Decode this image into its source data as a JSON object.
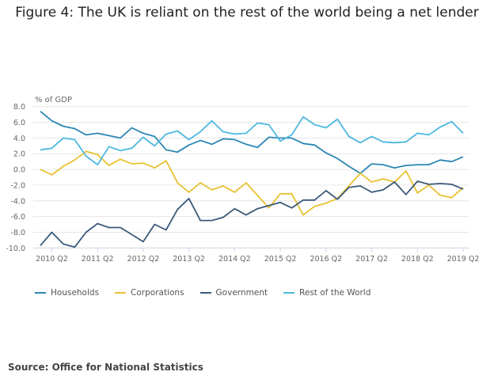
{
  "title": "Figure 4: The UK is reliant on the rest of the world being a net lender",
  "source": "Source: Office for National Statistics",
  "chart_data": {
    "type": "line",
    "ylabel": "% of GDP",
    "ylim": [
      -10,
      8
    ],
    "yticks": [
      "8.0",
      "6.0",
      "4.0",
      "2.0",
      "0.0",
      "-2.0",
      "-4.0",
      "-6.0",
      "-8.0",
      "-10.0"
    ],
    "ytick_values": [
      8,
      6,
      4,
      2,
      0,
      -2,
      -4,
      -6,
      -8,
      -10
    ],
    "x_start": "2010 Q1",
    "x_end": "2019 Q2",
    "xticks": [
      "2010 Q2",
      "2011 Q2",
      "2012 Q2",
      "2013 Q2",
      "2014 Q2",
      "2015 Q2",
      "2016 Q2",
      "2017 Q2",
      "2018 Q2",
      "2019 Q2"
    ],
    "grid": true,
    "legend_position": "bottom",
    "series": [
      {
        "name": "Households",
        "color": "#2a87b3",
        "values": [
          7.4,
          6.2,
          5.5,
          5.2,
          4.4,
          4.6,
          4.3,
          4.0,
          5.3,
          4.6,
          4.2,
          2.5,
          2.2,
          3.1,
          3.7,
          3.2,
          3.9,
          3.8,
          3.2,
          2.8,
          4.1,
          4.0,
          4.0,
          3.3,
          3.1,
          2.1,
          1.4,
          0.4,
          -0.5,
          0.7,
          0.6,
          0.2,
          0.5,
          0.6,
          0.6,
          1.2,
          1.0,
          1.6
        ]
      },
      {
        "name": "Corporations",
        "color": "#e8c232",
        "values": [
          0.0,
          -0.7,
          0.4,
          1.2,
          2.3,
          1.9,
          0.5,
          1.3,
          0.7,
          0.8,
          0.2,
          1.1,
          -1.7,
          -2.9,
          -1.7,
          -2.6,
          -2.1,
          -2.9,
          -1.7,
          -3.3,
          -4.9,
          -3.1,
          -3.1,
          -5.8,
          -4.7,
          -4.3,
          -3.7,
          -2.1,
          -0.5,
          -1.6,
          -1.2,
          -1.6,
          -0.2,
          -3.0,
          -2.0,
          -3.3,
          -3.6,
          -2.3
        ]
      },
      {
        "name": "Government",
        "color": "#3b5a7a",
        "values": [
          -9.7,
          -8.0,
          -9.5,
          -9.9,
          -8.0,
          -6.9,
          -7.4,
          -7.4,
          -8.3,
          -9.2,
          -7.0,
          -7.7,
          -5.1,
          -3.7,
          -6.5,
          -6.5,
          -6.1,
          -5.0,
          -5.8,
          -5.0,
          -4.6,
          -4.2,
          -4.9,
          -3.9,
          -3.9,
          -2.7,
          -3.8,
          -2.3,
          -2.1,
          -2.9,
          -2.6,
          -1.6,
          -3.2,
          -1.5,
          -1.9,
          -1.8,
          -1.9,
          -2.5
        ]
      },
      {
        "name": "Rest of the World",
        "color": "#4cb8e0",
        "values": [
          2.5,
          2.7,
          4.0,
          3.8,
          1.7,
          0.6,
          2.9,
          2.4,
          2.7,
          4.1,
          3.0,
          4.5,
          4.9,
          3.8,
          4.8,
          6.2,
          4.8,
          4.5,
          4.6,
          5.9,
          5.7,
          3.6,
          4.4,
          6.7,
          5.7,
          5.3,
          6.4,
          4.2,
          3.4,
          4.2,
          3.5,
          3.4,
          3.5,
          4.6,
          4.4,
          5.4,
          6.1,
          4.6
        ]
      }
    ]
  }
}
